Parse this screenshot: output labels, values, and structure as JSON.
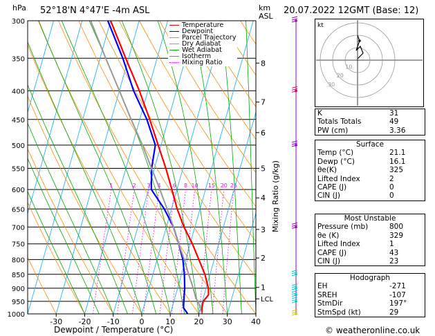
{
  "header": {
    "pressure_unit": "hPa",
    "location": "52°18'N  4°47'E  -4m  ASL",
    "height_unit": "km",
    "height_unit2": "ASL",
    "datetime": "20.07.2022  12GMT  (Base: 12)"
  },
  "chart_data": {
    "type": "line",
    "xlabel": "Dewpoint / Temperature (°C)",
    "ylabel_right": "Mixing Ratio (g/kg)",
    "xlim": [
      -40,
      40
    ],
    "x_ticks": [
      -30,
      -20,
      -10,
      0,
      10,
      20,
      30,
      40
    ],
    "pressure_levels": [
      300,
      350,
      400,
      450,
      500,
      550,
      600,
      650,
      700,
      750,
      800,
      850,
      900,
      950,
      1000
    ],
    "height_km_ticks": [
      {
        "label": "8",
        "p": 357
      },
      {
        "label": "7",
        "p": 419
      },
      {
        "label": "6",
        "p": 475
      },
      {
        "label": "5",
        "p": 550
      },
      {
        "label": "4",
        "p": 621
      },
      {
        "label": "3",
        "p": 707
      },
      {
        "label": "2",
        "p": 795
      },
      {
        "label": "1",
        "p": 897
      },
      {
        "label": "LCL",
        "p": 940
      }
    ],
    "mixing_ratio_labels": [
      "1",
      "2",
      "3",
      "4",
      "6",
      "8",
      "10",
      "15",
      "20",
      "25"
    ],
    "mixing_ratio_values": [
      1,
      2,
      3,
      4,
      6,
      8,
      10,
      15,
      20,
      25
    ],
    "legend": [
      {
        "name": "Temperature",
        "color": "#ff0000",
        "style": "solid"
      },
      {
        "name": "Dewpoint",
        "color": "#0000ff",
        "style": "solid"
      },
      {
        "name": "Parcel Trajectory",
        "color": "#999999",
        "style": "solid"
      },
      {
        "name": "Dry Adiabat",
        "color": "#ff8c00",
        "style": "solid"
      },
      {
        "name": "Wet Adiabat",
        "color": "#00aa00",
        "style": "solid"
      },
      {
        "name": "Isotherm",
        "color": "#00aaff",
        "style": "solid"
      },
      {
        "name": "Mixing Ratio",
        "color": "#ff00ff",
        "style": "dotted"
      }
    ],
    "series": [
      {
        "name": "Temperature",
        "color": "#ff0000",
        "points": [
          [
            1000,
            21.1
          ],
          [
            975,
            20.5
          ],
          [
            950,
            20.3
          ],
          [
            925,
            21.5
          ],
          [
            900,
            20.8
          ],
          [
            850,
            18.2
          ],
          [
            800,
            14.6
          ],
          [
            750,
            10.8
          ],
          [
            700,
            6.2
          ],
          [
            650,
            2.0
          ],
          [
            600,
            -1.8
          ],
          [
            550,
            -6.0
          ],
          [
            500,
            -11.0
          ],
          [
            450,
            -16.5
          ],
          [
            400,
            -23.0
          ],
          [
            350,
            -31.0
          ],
          [
            300,
            -40.0
          ]
        ]
      },
      {
        "name": "Dewpoint",
        "color": "#0000ff",
        "points": [
          [
            1000,
            16.1
          ],
          [
            975,
            14.0
          ],
          [
            950,
            13.5
          ],
          [
            925,
            13.0
          ],
          [
            900,
            12.5
          ],
          [
            850,
            11.0
          ],
          [
            800,
            9.0
          ],
          [
            750,
            6.0
          ],
          [
            700,
            2.5
          ],
          [
            650,
            -2.5
          ],
          [
            600,
            -9.0
          ],
          [
            550,
            -11.0
          ],
          [
            500,
            -12.0
          ],
          [
            450,
            -17.5
          ],
          [
            400,
            -25.0
          ],
          [
            350,
            -32.0
          ],
          [
            300,
            -41.0
          ]
        ]
      },
      {
        "name": "Parcel Trajectory",
        "color": "#999999",
        "points": [
          [
            1000,
            21.1
          ],
          [
            950,
            18.5
          ],
          [
            940,
            17.5
          ],
          [
            900,
            15.5
          ],
          [
            850,
            12.5
          ],
          [
            800,
            9.5
          ],
          [
            750,
            6.0
          ],
          [
            700,
            2.5
          ],
          [
            650,
            -1.5
          ],
          [
            600,
            -6.0
          ],
          [
            550,
            -11.0
          ],
          [
            500,
            -16.5
          ],
          [
            450,
            -23.0
          ],
          [
            400,
            -30.0
          ],
          [
            350,
            -38.0
          ],
          [
            300,
            -47.0
          ]
        ]
      }
    ],
    "wind_barbs": [
      {
        "p": 1000,
        "color": "#cccc00"
      },
      {
        "p": 950,
        "color": "#00cccc"
      },
      {
        "p": 925,
        "color": "#00cccc"
      },
      {
        "p": 900,
        "color": "#00cccc"
      },
      {
        "p": 850,
        "color": "#00cccc"
      },
      {
        "p": 700,
        "color": "#9900cc"
      },
      {
        "p": 500,
        "color": "#9900cc"
      },
      {
        "p": 400,
        "color": "#cc0066"
      },
      {
        "p": 300,
        "color": "#9900cc"
      }
    ]
  },
  "hodograph": {
    "unit": "kt",
    "ring_labels": [
      "10",
      "20",
      "30"
    ]
  },
  "indices": {
    "rows": [
      {
        "label": "K",
        "value": "31"
      },
      {
        "label": "Totals Totals",
        "value": "49"
      },
      {
        "label": "PW (cm)",
        "value": "3.36"
      }
    ]
  },
  "surface": {
    "title": "Surface",
    "rows": [
      {
        "label": "Temp (°C)",
        "value": "21.1"
      },
      {
        "label": "Dewp (°C)",
        "value": "16.1"
      },
      {
        "label": "θe(K)",
        "value": "325"
      },
      {
        "label": "Lifted Index",
        "value": "2"
      },
      {
        "label": "CAPE (J)",
        "value": "0"
      },
      {
        "label": "CIN (J)",
        "value": "0"
      }
    ]
  },
  "most_unstable": {
    "title": "Most Unstable",
    "rows": [
      {
        "label": "Pressure (mb)",
        "value": "800"
      },
      {
        "label": "θe (K)",
        "value": "329"
      },
      {
        "label": "Lifted Index",
        "value": "1"
      },
      {
        "label": "CAPE (J)",
        "value": "43"
      },
      {
        "label": "CIN (J)",
        "value": "23"
      }
    ]
  },
  "hodograph_table": {
    "title": "Hodograph",
    "rows": [
      {
        "label": "EH",
        "value": "-271"
      },
      {
        "label": "SREH",
        "value": "-107"
      },
      {
        "label": "StmDir",
        "value": "197°"
      },
      {
        "label": "StmSpd (kt)",
        "value": "29"
      }
    ]
  },
  "footer": {
    "copyright": "© weatheronline.co.uk"
  }
}
